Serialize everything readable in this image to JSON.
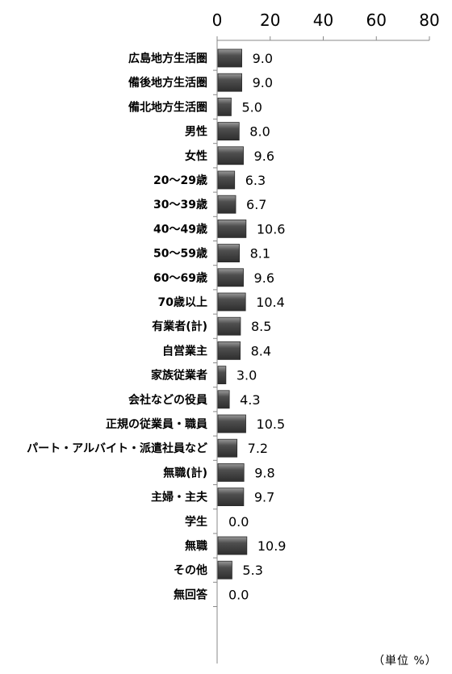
{
  "chart_data": {
    "type": "bar",
    "orientation": "horizontal",
    "x_axis_position": "top",
    "xlim": [
      0,
      80
    ],
    "x_ticks": [
      "0",
      "20",
      "40",
      "60",
      "80"
    ],
    "grid": false,
    "legend": "none",
    "unit_label": "（単位 %）",
    "bar_color": "#4d4d4d",
    "categories": [
      "広島地方生活圏",
      "備後地方生活圏",
      "備北地方生活圏",
      "男性",
      "女性",
      "20～29歳",
      "30～39歳",
      "40～49歳",
      "50～59歳",
      "60～69歳",
      "70歳以上",
      "有業者(計)",
      "自営業主",
      "家族従業者",
      "会社などの役員",
      "正規の従業員・職員",
      "パート・アルバイト・派遣社員など",
      "無職(計)",
      "主婦・主夫",
      "学生",
      "無職",
      "その他",
      "無回答"
    ],
    "values": [
      9.0,
      9.0,
      5.0,
      8.0,
      9.6,
      6.3,
      6.7,
      10.6,
      8.1,
      9.6,
      10.4,
      8.5,
      8.4,
      3.0,
      4.3,
      10.5,
      7.2,
      9.8,
      9.7,
      0.0,
      10.9,
      5.3,
      0.0
    ],
    "value_labels": [
      "9.0",
      "9.0",
      "5.0",
      "8.0",
      "9.6",
      "6.3",
      "6.7",
      "10.6",
      "8.1",
      "9.6",
      "10.4",
      "8.5",
      "8.4",
      "3.0",
      "4.3",
      "10.5",
      "7.2",
      "9.8",
      "9.7",
      "0.0",
      "10.9",
      "5.3",
      "0.0"
    ]
  }
}
